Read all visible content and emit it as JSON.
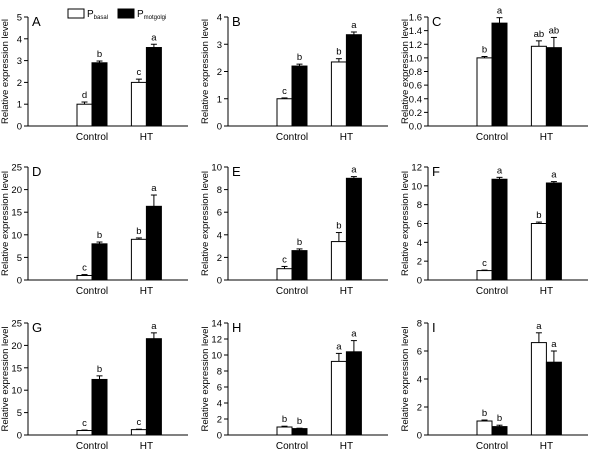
{
  "legend": {
    "basal": {
      "main": "P",
      "sub": "basal"
    },
    "motgolgi": {
      "main": "P",
      "sub": "motgolgi"
    }
  },
  "chart_data": [
    {
      "type": "bar",
      "panel": "A",
      "categories": [
        "Control",
        "HT"
      ],
      "series": [
        {
          "name": "Pbasal",
          "values": [
            1.0,
            2.0
          ],
          "errors": [
            0.1,
            0.15
          ],
          "letters": [
            "d",
            "c"
          ],
          "fill": "#ffffff"
        },
        {
          "name": "Pmotgolgi",
          "values": [
            2.9,
            3.6
          ],
          "errors": [
            0.08,
            0.15
          ],
          "letters": [
            "b",
            "a"
          ],
          "fill": "#000000"
        }
      ],
      "ylabel": "Relative expression level",
      "ylim": [
        0,
        5
      ],
      "yticks": [
        0,
        1,
        2,
        3,
        4,
        5
      ]
    },
    {
      "type": "bar",
      "panel": "B",
      "categories": [
        "Control",
        "HT"
      ],
      "series": [
        {
          "name": "Pbasal",
          "values": [
            1.0,
            2.35
          ],
          "errors": [
            0.03,
            0.12
          ],
          "letters": [
            "c",
            "b"
          ],
          "fill": "#ffffff"
        },
        {
          "name": "Pmotgolgi",
          "values": [
            2.2,
            3.35
          ],
          "errors": [
            0.07,
            0.1
          ],
          "letters": [
            "b",
            "a"
          ],
          "fill": "#000000"
        }
      ],
      "ylabel": "Relative expression level",
      "ylim": [
        0,
        4
      ],
      "yticks": [
        0,
        1,
        2,
        3,
        4
      ]
    },
    {
      "type": "bar",
      "panel": "C",
      "categories": [
        "Control",
        "HT"
      ],
      "series": [
        {
          "name": "Pbasal",
          "values": [
            1.0,
            1.17
          ],
          "errors": [
            0.02,
            0.08
          ],
          "letters": [
            "b",
            "ab"
          ],
          "fill": "#ffffff"
        },
        {
          "name": "Pmotgolgi",
          "values": [
            1.51,
            1.15
          ],
          "errors": [
            0.08,
            0.15
          ],
          "letters": [
            "a",
            "ab"
          ],
          "fill": "#000000"
        }
      ],
      "ylabel": "Relative expression level",
      "ylim": [
        0,
        1.6
      ],
      "yticks": [
        "0.0",
        "0.2",
        "0.4",
        "0.6",
        "0.8",
        "1.0",
        "1.2",
        "1.4",
        "1.6"
      ]
    },
    {
      "type": "bar",
      "panel": "D",
      "categories": [
        "Control",
        "HT"
      ],
      "series": [
        {
          "name": "Pbasal",
          "values": [
            1.0,
            9.0
          ],
          "errors": [
            0.2,
            0.3
          ],
          "letters": [
            "c",
            "b"
          ],
          "fill": "#ffffff"
        },
        {
          "name": "Pmotgolgi",
          "values": [
            8.0,
            16.3
          ],
          "errors": [
            0.4,
            2.5
          ],
          "letters": [
            "b",
            "a"
          ],
          "fill": "#000000"
        }
      ],
      "ylabel": "Relative expression level",
      "ylim": [
        0,
        25
      ],
      "yticks": [
        0,
        5,
        10,
        15,
        20,
        25
      ]
    },
    {
      "type": "bar",
      "panel": "E",
      "categories": [
        "Control",
        "HT"
      ],
      "series": [
        {
          "name": "Pbasal",
          "values": [
            1.0,
            3.4
          ],
          "errors": [
            0.2,
            0.8
          ],
          "letters": [
            "c",
            "b"
          ],
          "fill": "#ffffff"
        },
        {
          "name": "Pmotgolgi",
          "values": [
            2.6,
            9.0
          ],
          "errors": [
            0.15,
            0.15
          ],
          "letters": [
            "b",
            "a"
          ],
          "fill": "#000000"
        }
      ],
      "ylabel": "Relative expression level",
      "ylim": [
        0,
        10
      ],
      "yticks": [
        0,
        2,
        4,
        6,
        8,
        10
      ]
    },
    {
      "type": "bar",
      "panel": "F",
      "categories": [
        "Control",
        "HT"
      ],
      "series": [
        {
          "name": "Pbasal",
          "values": [
            1.0,
            6.0
          ],
          "errors": [
            0.05,
            0.15
          ],
          "letters": [
            "c",
            "b"
          ],
          "fill": "#ffffff"
        },
        {
          "name": "Pmotgolgi",
          "values": [
            10.7,
            10.3
          ],
          "errors": [
            0.2,
            0.15
          ],
          "letters": [
            "a",
            "a"
          ],
          "fill": "#000000"
        }
      ],
      "ylabel": "Relative expression level",
      "ylim": [
        0,
        12
      ],
      "yticks": [
        0,
        2,
        4,
        6,
        8,
        10,
        12
      ]
    },
    {
      "type": "bar",
      "panel": "G",
      "categories": [
        "Control",
        "HT"
      ],
      "series": [
        {
          "name": "Pbasal",
          "values": [
            1.0,
            1.2
          ],
          "errors": [
            0.1,
            0.1
          ],
          "letters": [
            "c",
            "c"
          ],
          "fill": "#ffffff"
        },
        {
          "name": "Pmotgolgi",
          "values": [
            12.4,
            21.5
          ],
          "errors": [
            0.8,
            1.3
          ],
          "letters": [
            "b",
            "a"
          ],
          "fill": "#000000"
        }
      ],
      "ylabel": "Relative expression level",
      "ylim": [
        0,
        25
      ],
      "yticks": [
        0,
        5,
        10,
        15,
        20,
        25
      ]
    },
    {
      "type": "bar",
      "panel": "H",
      "categories": [
        "Control",
        "HT"
      ],
      "series": [
        {
          "name": "Pbasal",
          "values": [
            1.0,
            9.2
          ],
          "errors": [
            0.1,
            1.0
          ],
          "letters": [
            "b",
            "a"
          ],
          "fill": "#ffffff"
        },
        {
          "name": "Pmotgolgi",
          "values": [
            0.8,
            10.4
          ],
          "errors": [
            0.05,
            1.4
          ],
          "letters": [
            "b",
            "a"
          ],
          "fill": "#000000"
        }
      ],
      "ylabel": "Relative expression level",
      "ylim": [
        0,
        14
      ],
      "yticks": [
        0,
        2,
        4,
        6,
        8,
        10,
        12,
        14
      ]
    },
    {
      "type": "bar",
      "panel": "I",
      "categories": [
        "Control",
        "HT"
      ],
      "series": [
        {
          "name": "Pbasal",
          "values": [
            1.0,
            6.6
          ],
          "errors": [
            0.07,
            0.7
          ],
          "letters": [
            "b",
            "a"
          ],
          "fill": "#ffffff"
        },
        {
          "name": "Pmotgolgi",
          "values": [
            0.6,
            5.2
          ],
          "errors": [
            0.1,
            0.8
          ],
          "letters": [
            "b",
            "a"
          ],
          "fill": "#000000"
        }
      ],
      "ylabel": "Relative expression level",
      "ylim": [
        0,
        8
      ],
      "yticks": [
        0,
        2,
        4,
        6,
        8
      ]
    }
  ]
}
